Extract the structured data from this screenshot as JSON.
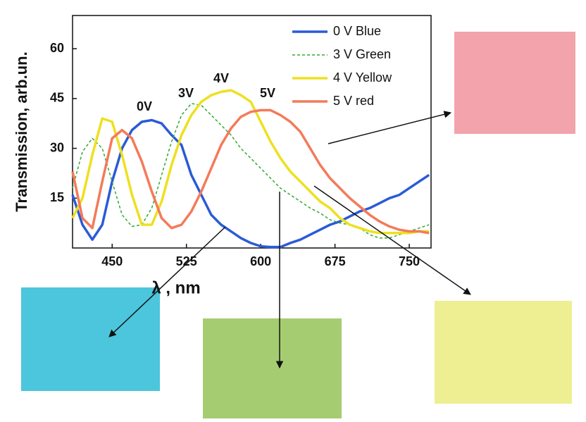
{
  "chart_data": {
    "type": "line",
    "x_label": "λ , nm",
    "y_label": "Transmission, arb.un.",
    "x": [
      410,
      420,
      430,
      440,
      450,
      460,
      470,
      480,
      490,
      500,
      510,
      520,
      530,
      540,
      550,
      560,
      570,
      580,
      590,
      600,
      610,
      620,
      630,
      640,
      650,
      660,
      670,
      680,
      690,
      700,
      710,
      720,
      730,
      740,
      750,
      760,
      770
    ],
    "series": [
      {
        "name": "0 V Blue",
        "color": "#2a5bd7",
        "linestyle": "solid",
        "values": [
          16,
          7,
          2.5,
          7,
          20,
          30,
          35.5,
          38,
          38.5,
          37.5,
          34,
          31,
          22,
          16,
          10,
          7,
          5,
          3,
          1.5,
          0.5,
          0.3,
          0.3,
          1.5,
          2.5,
          4,
          5.5,
          7,
          8,
          9.5,
          11,
          12,
          13.5,
          15,
          16,
          18,
          20,
          22
        ]
      },
      {
        "name": "3 V Green",
        "color": "#33aa33",
        "linestyle": "dashed",
        "values": [
          18,
          29,
          33,
          30,
          20,
          10,
          6.5,
          7,
          12,
          22,
          32,
          40,
          43.5,
          43,
          40,
          37,
          34,
          30,
          27,
          24,
          21,
          18,
          16,
          14,
          12,
          10.5,
          8.5,
          7.5,
          7,
          6,
          4,
          3,
          3,
          4,
          5,
          6,
          7
        ]
      },
      {
        "name": "4 V Yellow",
        "color": "#eee020",
        "linestyle": "solid",
        "values": [
          9,
          15,
          28,
          39,
          38,
          28,
          16,
          7,
          7,
          14,
          25,
          34,
          40,
          44,
          46,
          47,
          47.5,
          46,
          44,
          38,
          32,
          27,
          23,
          20,
          17,
          14,
          12,
          9,
          7,
          6,
          5,
          4.5,
          4.5,
          4.5,
          4.5,
          5,
          5
        ]
      },
      {
        "name": "5 V red",
        "color": "#f47a5a",
        "linestyle": "solid",
        "values": [
          23,
          9,
          6,
          20,
          33,
          35.5,
          33,
          26,
          17,
          9,
          6,
          7,
          11,
          17,
          24,
          31,
          36,
          39.5,
          41,
          41.5,
          41.5,
          40,
          38,
          35,
          30,
          25,
          21,
          18,
          15,
          12.5,
          10,
          8,
          6.5,
          5.5,
          5,
          5,
          4.5
        ]
      }
    ],
    "annotations": [
      "0V",
      "3V",
      "4V",
      "5V"
    ],
    "xlim": [
      410,
      772
    ],
    "xticks": [
      450,
      525,
      600,
      675,
      750
    ],
    "ylim": [
      0,
      70
    ],
    "yticks": [
      15,
      30,
      45,
      60
    ],
    "legend": "top-right"
  }
}
